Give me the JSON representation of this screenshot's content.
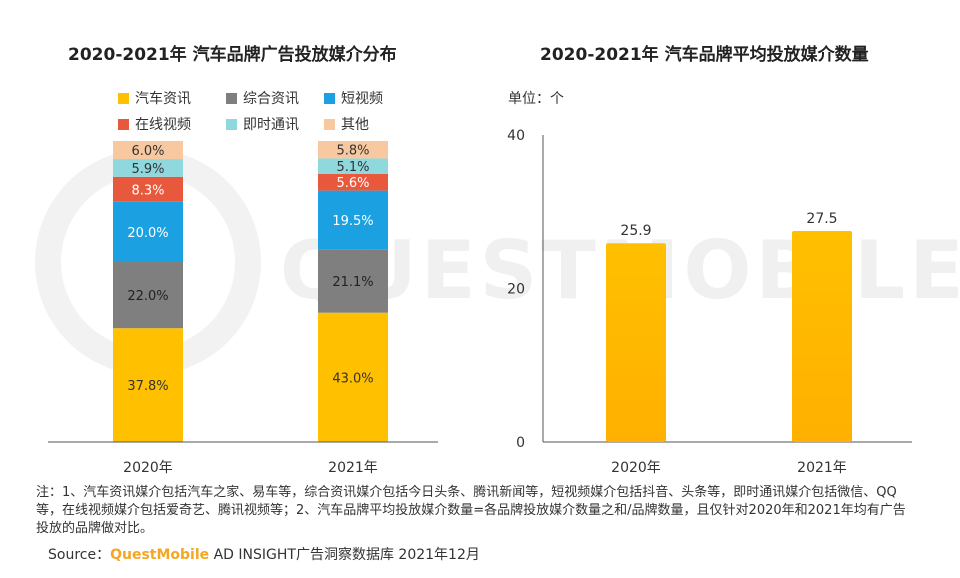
{
  "chart_data": [
    {
      "type": "bar",
      "stacked": true,
      "title": "2020-2021年 汽车品牌广告投放媒介分布",
      "categories": [
        "2020年",
        "2021年"
      ],
      "series": [
        {
          "name": "汽车资讯",
          "values": [
            37.8,
            43.0
          ],
          "labels": [
            "37.8%",
            "43.0%"
          ],
          "color": "#FFC000"
        },
        {
          "name": "综合资讯",
          "values": [
            22.0,
            21.1
          ],
          "labels": [
            "22.0%",
            "21.1%"
          ],
          "color": "#7F7F7F"
        },
        {
          "name": "短视频",
          "values": [
            20.0,
            19.5
          ],
          "labels": [
            "20.0%",
            "19.5%"
          ],
          "color": "#1BA1E2"
        },
        {
          "name": "在线视频",
          "values": [
            8.3,
            5.6
          ],
          "labels": [
            "8.3%",
            "5.6%"
          ],
          "color": "#E8583D"
        },
        {
          "name": "即时通讯",
          "values": [
            5.9,
            5.1
          ],
          "labels": [
            "5.9%",
            "5.1%"
          ],
          "color": "#8FD8DE"
        },
        {
          "name": "其他",
          "values": [
            6.0,
            5.8
          ],
          "labels": [
            "6.0%",
            "5.8%"
          ],
          "color": "#F8C9A0"
        }
      ],
      "ylim": [
        0,
        100
      ],
      "legend": "top"
    },
    {
      "type": "bar",
      "title": "2020-2021年 汽车品牌平均投放媒介数量",
      "unit": "单位：个",
      "categories": [
        "2020年",
        "2021年"
      ],
      "values": [
        25.9,
        27.5
      ],
      "labels": [
        "25.9",
        "27.5"
      ],
      "ylim": [
        0,
        40
      ],
      "yticks": [
        "0",
        "20",
        "40"
      ],
      "color": "#FFC000"
    }
  ],
  "footnote": {
    "note": "注：1、汽车资讯媒介包括汽车之家、易车等，综合资讯媒介包括今日头条、腾讯新闻等，短视频媒介包括抖音、头条等，即时通讯媒介包括微信、QQ等，在线视频媒介包括爱奇艺、腾讯视频等；2、汽车品牌平均投放媒介数量=各品牌投放媒介数量之和/品牌数量，且仅针对2020年和2021年均有广告投放的品牌做对比。",
    "source_label": "Source：",
    "source_brand": "QuestMobile",
    "source_rest": " AD INSIGHT广告洞察数据库 2021年12月"
  },
  "watermark": "QUESTMOBILE"
}
